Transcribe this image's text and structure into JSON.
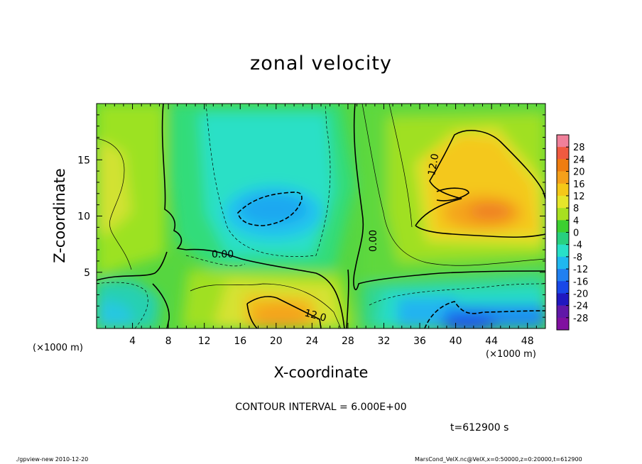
{
  "chart_data": {
    "type": "heatmap",
    "title": "zonal velocity",
    "xlabel": "X-coordinate",
    "ylabel": "Z-coordinate",
    "x_unit": "(×1000 m)",
    "xlim": [
      0,
      50
    ],
    "ylim": [
      0,
      20
    ],
    "x_ticks": [
      4,
      8,
      12,
      16,
      20,
      24,
      28,
      32,
      36,
      40,
      44,
      48
    ],
    "y_ticks": [
      5,
      10,
      15
    ],
    "colorbar": {
      "levels": [
        28,
        24,
        20,
        16,
        12,
        8,
        4,
        0,
        -4,
        -8,
        -12,
        -16,
        -20,
        -24,
        -28
      ],
      "colors": [
        "#f0809a",
        "#f05a40",
        "#ef7d10",
        "#f5a01a",
        "#f5c818",
        "#e6e62a",
        "#a8e020",
        "#3cd030",
        "#28d080",
        "#28e0c8",
        "#20b8f0",
        "#2080f0",
        "#1848e8",
        "#2018c0",
        "#6018a8",
        "#8010a0"
      ]
    },
    "contour_labels": [
      "12.0",
      "0.00",
      "0.00",
      "12.0"
    ],
    "contour_interval": "CONTOUR INTERVAL = 6.000E+00",
    "time": "t=612900 s"
  },
  "footer": {
    "left": "./gpview-new  2010-12-20",
    "right": "MarsCond_VelX.nc@VelX,x=0:50000,z=0:20000,t=612900"
  }
}
